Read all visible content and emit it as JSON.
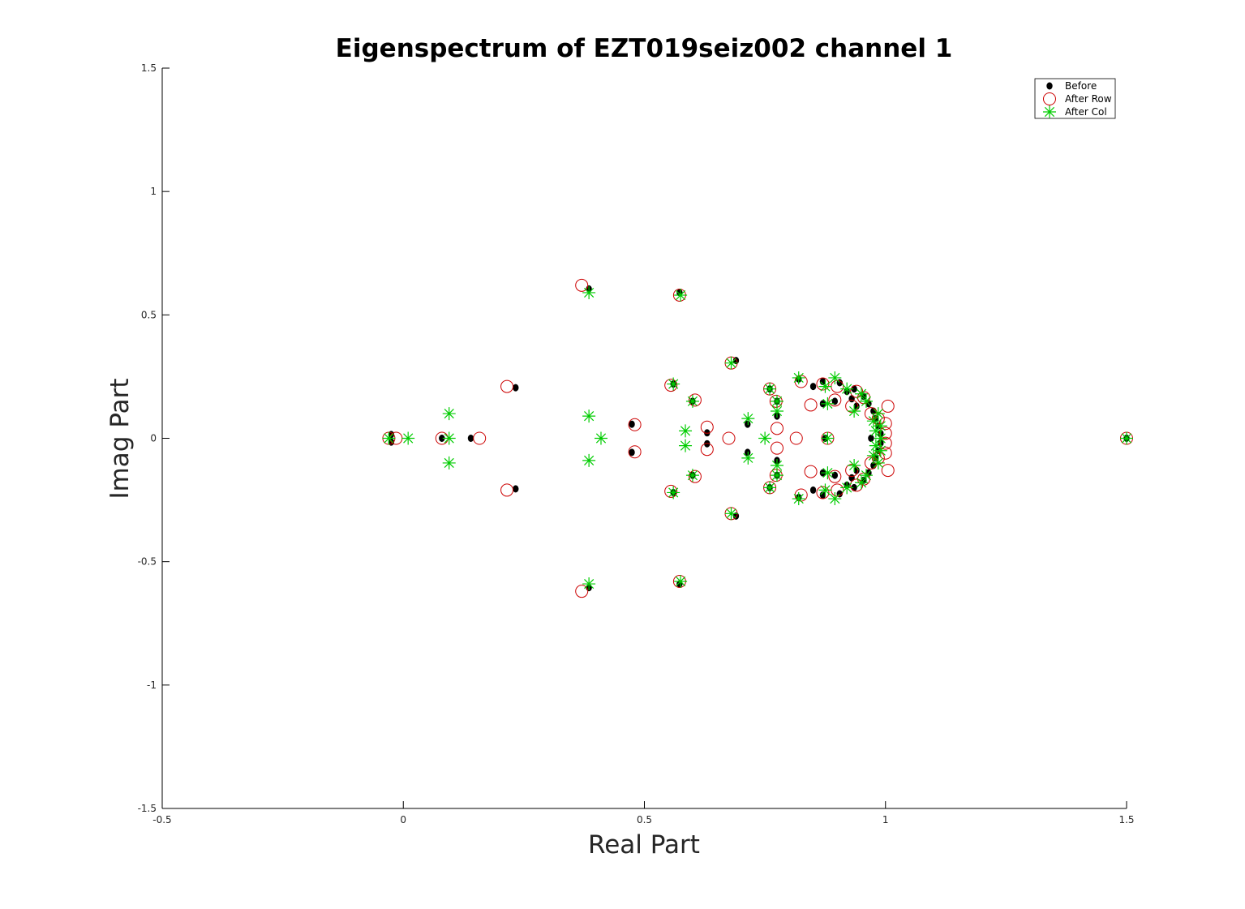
{
  "chart_data": {
    "type": "scatter",
    "title": "Eigenspectrum of EZT019seiz002 channel 1",
    "xlabel": "Real Part",
    "ylabel": "Imag Part",
    "xlim": [
      -0.5,
      1.5
    ],
    "ylim": [
      -1.5,
      1.5
    ],
    "xticks": [
      "-0.5",
      "0",
      "0.5",
      "1",
      "1.5"
    ],
    "yticks": [
      "-1.5",
      "-1",
      "-0.5",
      "0",
      "0.5",
      "1",
      "1.5"
    ],
    "grid": false,
    "legend_position": "top-right",
    "series": [
      {
        "name": "Before",
        "marker": "filled-dot",
        "color": "#000000",
        "points": [
          [
            -0.025,
            0.015
          ],
          [
            -0.025,
            -0.015
          ],
          [
            0.08,
            0.0
          ],
          [
            0.14,
            0.0
          ],
          [
            0.233,
            0.205
          ],
          [
            0.233,
            -0.205
          ],
          [
            0.385,
            0.605
          ],
          [
            0.385,
            -0.605
          ],
          [
            0.474,
            0.057
          ],
          [
            0.474,
            -0.057
          ],
          [
            0.573,
            0.59
          ],
          [
            0.573,
            -0.59
          ],
          [
            0.56,
            0.22
          ],
          [
            0.56,
            -0.22
          ],
          [
            0.6,
            0.15
          ],
          [
            0.6,
            -0.15
          ],
          [
            0.63,
            0.022
          ],
          [
            0.63,
            -0.022
          ],
          [
            0.69,
            0.315
          ],
          [
            0.69,
            -0.315
          ],
          [
            0.714,
            0.057
          ],
          [
            0.714,
            -0.057
          ],
          [
            0.76,
            0.2
          ],
          [
            0.76,
            -0.2
          ],
          [
            0.775,
            0.15
          ],
          [
            0.775,
            -0.15
          ],
          [
            0.775,
            0.09
          ],
          [
            0.775,
            -0.09
          ],
          [
            0.82,
            0.24
          ],
          [
            0.82,
            -0.24
          ],
          [
            0.85,
            0.21
          ],
          [
            0.85,
            -0.21
          ],
          [
            0.87,
            0.23
          ],
          [
            0.87,
            -0.23
          ],
          [
            0.87,
            0.14
          ],
          [
            0.87,
            -0.14
          ],
          [
            0.875,
            0.0
          ],
          [
            0.895,
            0.15
          ],
          [
            0.895,
            -0.15
          ],
          [
            0.905,
            0.225
          ],
          [
            0.905,
            -0.225
          ],
          [
            0.92,
            0.19
          ],
          [
            0.92,
            -0.19
          ],
          [
            0.93,
            0.16
          ],
          [
            0.93,
            -0.16
          ],
          [
            0.935,
            0.2
          ],
          [
            0.935,
            -0.2
          ],
          [
            0.94,
            0.13
          ],
          [
            0.94,
            -0.13
          ],
          [
            0.955,
            0.17
          ],
          [
            0.955,
            -0.17
          ],
          [
            0.965,
            0.14
          ],
          [
            0.965,
            -0.14
          ],
          [
            0.97,
            0.0
          ],
          [
            0.975,
            0.11
          ],
          [
            0.975,
            -0.11
          ],
          [
            0.98,
            0.08
          ],
          [
            0.98,
            -0.08
          ],
          [
            0.985,
            0.05
          ],
          [
            0.985,
            -0.05
          ],
          [
            0.99,
            0.02
          ],
          [
            0.99,
            -0.02
          ],
          [
            1.5,
            0.0
          ]
        ]
      },
      {
        "name": "After Row",
        "marker": "open-circle",
        "color": "#cc0000",
        "points": [
          [
            -0.03,
            0.0
          ],
          [
            -0.015,
            0.0
          ],
          [
            0.08,
            0.0
          ],
          [
            0.158,
            0.0
          ],
          [
            0.215,
            0.21
          ],
          [
            0.215,
            -0.21
          ],
          [
            0.37,
            0.62
          ],
          [
            0.37,
            -0.62
          ],
          [
            0.48,
            0.055
          ],
          [
            0.48,
            -0.055
          ],
          [
            0.573,
            0.58
          ],
          [
            0.573,
            -0.58
          ],
          [
            0.555,
            0.215
          ],
          [
            0.555,
            -0.215
          ],
          [
            0.605,
            0.155
          ],
          [
            0.605,
            -0.155
          ],
          [
            0.63,
            0.045
          ],
          [
            0.63,
            -0.045
          ],
          [
            0.68,
            0.305
          ],
          [
            0.68,
            -0.305
          ],
          [
            0.675,
            0.0
          ],
          [
            0.76,
            0.2
          ],
          [
            0.76,
            -0.2
          ],
          [
            0.775,
            0.04
          ],
          [
            0.775,
            -0.04
          ],
          [
            0.773,
            0.15
          ],
          [
            0.773,
            -0.15
          ],
          [
            0.815,
            0.0
          ],
          [
            0.825,
            0.23
          ],
          [
            0.825,
            -0.23
          ],
          [
            0.845,
            0.135
          ],
          [
            0.845,
            -0.135
          ],
          [
            0.87,
            0.22
          ],
          [
            0.87,
            -0.22
          ],
          [
            0.88,
            0.0
          ],
          [
            0.895,
            0.155
          ],
          [
            0.895,
            -0.155
          ],
          [
            0.9,
            0.21
          ],
          [
            0.9,
            -0.21
          ],
          [
            0.93,
            0.13
          ],
          [
            0.93,
            -0.13
          ],
          [
            0.94,
            0.19
          ],
          [
            0.94,
            -0.19
          ],
          [
            0.955,
            0.165
          ],
          [
            0.955,
            -0.165
          ],
          [
            0.97,
            0.1
          ],
          [
            0.97,
            -0.1
          ],
          [
            0.985,
            0.08
          ],
          [
            0.985,
            -0.08
          ],
          [
            1.0,
            0.06
          ],
          [
            1.0,
            -0.06
          ],
          [
            1.0,
            0.02
          ],
          [
            1.0,
            -0.02
          ],
          [
            1.005,
            0.13
          ],
          [
            1.005,
            -0.13
          ],
          [
            1.5,
            0.0
          ]
        ]
      },
      {
        "name": "After Col",
        "marker": "asterisk",
        "color": "#00cc00",
        "points": [
          [
            -0.03,
            0.0
          ],
          [
            0.01,
            0.0
          ],
          [
            0.095,
            0.1
          ],
          [
            0.095,
            0.0
          ],
          [
            0.095,
            -0.1
          ],
          [
            0.385,
            0.09
          ],
          [
            0.385,
            -0.09
          ],
          [
            0.41,
            0.0
          ],
          [
            0.385,
            0.59
          ],
          [
            0.385,
            -0.59
          ],
          [
            0.575,
            0.58
          ],
          [
            0.575,
            -0.58
          ],
          [
            0.56,
            0.22
          ],
          [
            0.56,
            -0.22
          ],
          [
            0.585,
            0.03
          ],
          [
            0.585,
            -0.03
          ],
          [
            0.6,
            0.15
          ],
          [
            0.6,
            -0.15
          ],
          [
            0.68,
            0.305
          ],
          [
            0.68,
            -0.305
          ],
          [
            0.715,
            0.08
          ],
          [
            0.715,
            -0.08
          ],
          [
            0.75,
            0.0
          ],
          [
            0.76,
            0.2
          ],
          [
            0.76,
            -0.2
          ],
          [
            0.775,
            0.11
          ],
          [
            0.775,
            -0.11
          ],
          [
            0.775,
            0.15
          ],
          [
            0.775,
            -0.15
          ],
          [
            0.82,
            0.245
          ],
          [
            0.82,
            -0.245
          ],
          [
            0.875,
            0.21
          ],
          [
            0.875,
            -0.21
          ],
          [
            0.88,
            0.14
          ],
          [
            0.88,
            -0.14
          ],
          [
            0.88,
            0.0
          ],
          [
            0.895,
            0.245
          ],
          [
            0.895,
            -0.245
          ],
          [
            0.92,
            0.2
          ],
          [
            0.92,
            -0.2
          ],
          [
            0.935,
            0.11
          ],
          [
            0.935,
            -0.11
          ],
          [
            0.95,
            0.18
          ],
          [
            0.95,
            -0.18
          ],
          [
            0.96,
            0.15
          ],
          [
            0.96,
            -0.15
          ],
          [
            0.975,
            0.07
          ],
          [
            0.975,
            -0.07
          ],
          [
            0.98,
            0.03
          ],
          [
            0.98,
            -0.03
          ],
          [
            0.99,
            0.05
          ],
          [
            0.99,
            -0.05
          ],
          [
            0.99,
            0.0
          ],
          [
            0.985,
            0.1
          ],
          [
            0.985,
            -0.1
          ],
          [
            1.5,
            0.0
          ]
        ]
      }
    ]
  }
}
